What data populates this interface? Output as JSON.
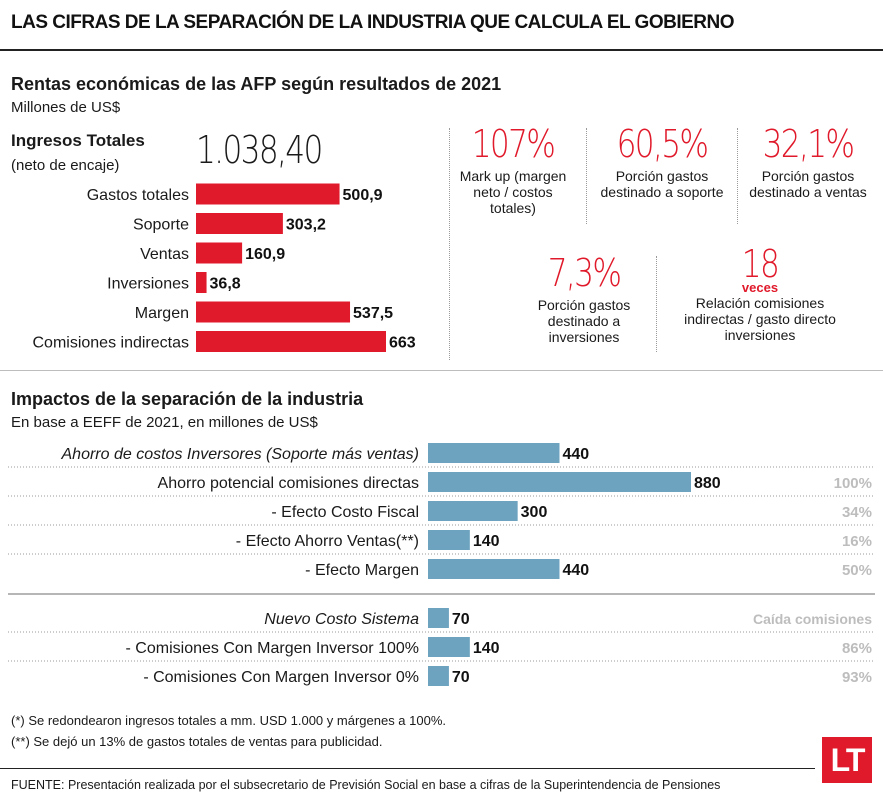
{
  "header": {
    "title": "LAS CIFRAS DE LA SEPARACIÓN DE LA INDUSTRIA QUE CALCULA EL GOBIERNO"
  },
  "rentas": {
    "title": "Rentas económicas de las AFP según resultados de 2021",
    "subtitle": "Millones de US$",
    "ingresos_label": "Ingresos Totales",
    "ingresos_sub": "(neto de encaje)",
    "ingresos_value": "1.038,40"
  },
  "stats": [
    {
      "value": "107%",
      "label": "Mark up (margen neto / costos totales)"
    },
    {
      "value": "60,5%",
      "label": "Porción gastos destinado a soporte"
    },
    {
      "value": "32,1%",
      "label": "Porción gastos destinado a ventas"
    },
    {
      "value": "7,3%",
      "label": "Porción gastos destinado a inversiones"
    },
    {
      "value": "18",
      "unit": "veces",
      "label": "Relación comisiones indirectas / gasto directo inversiones"
    }
  ],
  "impactos": {
    "title": "Impactos de la separación de la industria",
    "subtitle": "En base a EEFF de 2021, en millones de US$"
  },
  "notes": {
    "n1": "(*) Se redondearon ingresos totales a mm. USD 1.000 y márgenes a 100%.",
    "n2": "(**) Se dejó un 13% de gastos totales de ventas para publicidad.",
    "fuente_label": "FUENTE:",
    "fuente": " Presentación realizada por el subsecretario de Previsión Social en base a cifras de la Superintendencia de Pensiones"
  },
  "logo": {
    "text": "LT"
  },
  "colors": {
    "red": "#e01a2b",
    "blue": "#6ea3c0",
    "gray": "#bdbdbd"
  },
  "chart_data": [
    {
      "type": "bar",
      "orientation": "horizontal",
      "categories": [
        "Gastos totales",
        "Soporte",
        "Ventas",
        "Inversiones",
        "Margen",
        "Comisiones indirectas"
      ],
      "values": [
        500.9,
        303.2,
        160.9,
        36.8,
        537.5,
        663
      ],
      "value_labels": [
        "500,9",
        "303,2",
        "160,9",
        "36,8",
        "537,5",
        "663"
      ],
      "color": "#e01a2b"
    },
    {
      "type": "bar",
      "orientation": "horizontal",
      "categories": [
        "Ahorro de costos Inversores (Soporte más ventas)",
        "Ahorro potencial comisiones directas",
        "- Efecto Costo Fiscal",
        "- Efecto Ahorro Ventas(**)",
        "- Efecto Margen",
        "Nuevo Costo Sistema",
        "- Comisiones Con Margen Inversor 100%",
        "- Comisiones Con Margen Inversor 0%"
      ],
      "values": [
        440,
        880,
        300,
        140,
        440,
        70,
        140,
        70
      ],
      "percent_labels": [
        "",
        "100%",
        "34%",
        "16%",
        "50%",
        "Caída comisiones",
        "86%",
        "93%"
      ],
      "color": "#6ea3c0"
    }
  ]
}
